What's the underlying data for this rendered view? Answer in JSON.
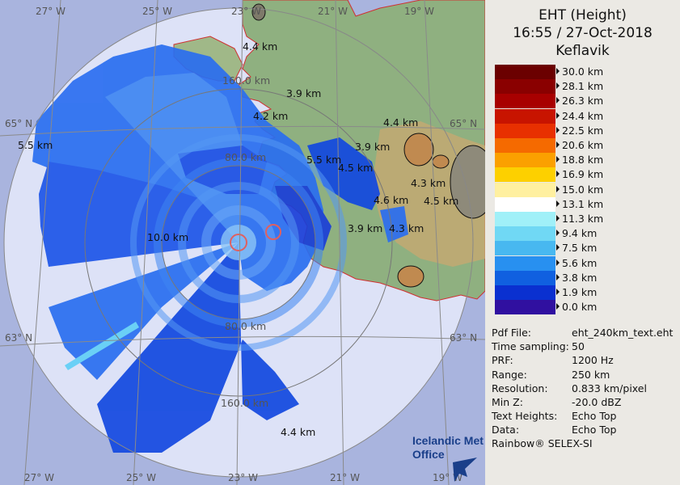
{
  "header": {
    "title_line1": "EHT (Height)",
    "title_line2": "16:55 / 27-Oct-2018",
    "title_line3": "Keflavik"
  },
  "scale": [
    {
      "label": "30.0 km",
      "color": "#6b0000"
    },
    {
      "label": "28.1 km",
      "color": "#8a0000"
    },
    {
      "label": "26.3 km",
      "color": "#a80000"
    },
    {
      "label": "24.4 km",
      "color": "#c81400"
    },
    {
      "label": "22.5 km",
      "color": "#e83000"
    },
    {
      "label": "20.6 km",
      "color": "#f56a00"
    },
    {
      "label": "18.8 km",
      "color": "#fba000"
    },
    {
      "label": "16.9 km",
      "color": "#fdd000"
    },
    {
      "label": "15.0 km",
      "color": "#fff0a0"
    },
    {
      "label": "13.1 km",
      "color": "#ffffff"
    },
    {
      "label": "11.3 km",
      "color": "#a0f0f8"
    },
    {
      "label": "9.4 km",
      "color": "#70d8f4"
    },
    {
      "label": "7.5 km",
      "color": "#48b8f0"
    },
    {
      "label": "5.6 km",
      "color": "#2890f0"
    },
    {
      "label": "3.8 km",
      "color": "#1060e0"
    },
    {
      "label": "1.9 km",
      "color": "#0a30d0"
    },
    {
      "label": "0.0 km",
      "color": "#3010a0"
    }
  ],
  "info": [
    {
      "key": "Pdf File:",
      "value": "eht_240km_text.eht"
    },
    {
      "key": "Time sampling:",
      "value": "50"
    },
    {
      "key": "PRF:",
      "value": "1200 Hz"
    },
    {
      "key": "Range:",
      "value": "250 km"
    },
    {
      "key": "Resolution:",
      "value": "0.833 km/pixel"
    },
    {
      "key": "Min Z:",
      "value": "-20.0 dBZ"
    },
    {
      "key": "Text Heights:",
      "value": "Echo Top"
    },
    {
      "key": "Data:",
      "value": "Echo Top"
    }
  ],
  "footer": "Rainbow® SELEX-SI",
  "logo": {
    "line1": "Icelandic Met",
    "line2": "Office"
  },
  "grid": {
    "lon_top": [
      "27° W",
      "25° W",
      "23° W",
      "21° W",
      "19° W"
    ],
    "lon_bottom": [
      "27° W",
      "25° W",
      "23° W",
      "21° W",
      "19° W"
    ],
    "lat_left": [
      "65° N",
      "63° N"
    ],
    "lat_right": [
      "65° N",
      "63° N"
    ]
  },
  "rings": [
    "160.0 km",
    "80.0 km",
    "80.0 km",
    "160.0 km"
  ],
  "heights": [
    "4.4 km",
    "3.9 km",
    "4.2 km",
    "5.5 km",
    "5.5 km",
    "10.0 km",
    "3.9 km",
    "4.4 km",
    "4.5 km",
    "4.3 km",
    "4.6 km",
    "4.5 km",
    "3.9 km",
    "4.3 km",
    "4.4 km"
  ]
}
